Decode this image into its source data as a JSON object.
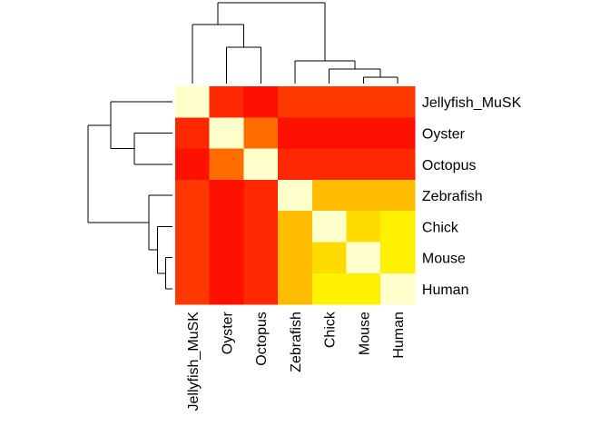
{
  "chart_data": {
    "type": "heatmap",
    "title": "",
    "xlabel": "",
    "ylabel": "",
    "color_scale": {
      "low": "#FF0000",
      "mid": "#FFA500",
      "high": "#FFFF00",
      "diagonal": "#FFFFCC"
    },
    "rows": [
      "Jellyfish_MuSK",
      "Oyster",
      "Octopus",
      "Zebrafish",
      "Chick",
      "Mouse",
      "Human"
    ],
    "columns": [
      "Jellyfish_MuSK",
      "Oyster",
      "Octopus",
      "Zebrafish",
      "Chick",
      "Mouse",
      "Human"
    ],
    "values": [
      [
        1.0,
        0.12,
        0.05,
        0.17,
        0.17,
        0.17,
        0.17
      ],
      [
        0.12,
        1.0,
        0.33,
        0.05,
        0.05,
        0.05,
        0.05
      ],
      [
        0.05,
        0.33,
        1.0,
        0.12,
        0.12,
        0.12,
        0.12
      ],
      [
        0.17,
        0.05,
        0.12,
        1.0,
        0.63,
        0.63,
        0.63
      ],
      [
        0.17,
        0.05,
        0.12,
        0.63,
        1.0,
        0.8,
        0.92
      ],
      [
        0.17,
        0.05,
        0.12,
        0.63,
        0.8,
        1.0,
        0.92
      ],
      [
        0.17,
        0.05,
        0.12,
        0.63,
        0.92,
        0.92,
        1.0
      ]
    ],
    "cluster_order": [
      "Jellyfish_MuSK",
      "Oyster",
      "Octopus",
      "Zebrafish",
      "Chick",
      "Mouse",
      "Human"
    ],
    "dendrogram": {
      "heights": {
        "Mouse+Human": 0.08,
        "Chick+(Mouse,Human)": 0.18,
        "Zebrafish+(Chick,Mouse,Human)": 0.28,
        "Oyster+Octopus": 0.45,
        "Jellyfish_MuSK+(Oyster,Octopus)": 0.73,
        "root": 1.0
      }
    }
  }
}
